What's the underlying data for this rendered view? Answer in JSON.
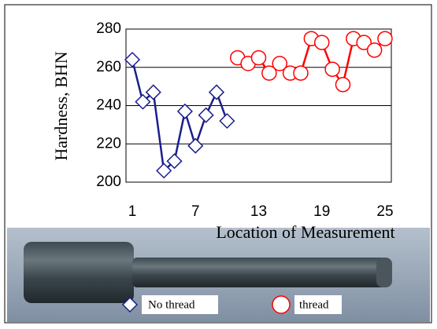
{
  "chart_data": {
    "type": "line",
    "xlabel": "Location of Measurement",
    "ylabel": "Hardness, BHN",
    "xlim": [
      0.4,
      25.6
    ],
    "xticks": [
      1,
      7,
      13,
      19,
      25
    ],
    "ylim": [
      200,
      280
    ],
    "yticks": [
      200,
      220,
      240,
      260,
      280
    ],
    "grid": true,
    "series": [
      {
        "name": "No thread",
        "color": "#1a1f8c",
        "marker": "diamond",
        "x": [
          1,
          2,
          3,
          4,
          5,
          6,
          7,
          8,
          9,
          10
        ],
        "values": [
          264,
          242,
          247,
          206,
          211,
          237,
          219,
          235,
          247,
          232
        ]
      },
      {
        "name": "thread",
        "color": "#ff0000",
        "marker": "circle",
        "x": [
          11,
          12,
          13,
          14,
          15,
          16,
          17,
          18,
          19,
          20,
          21,
          22,
          23,
          24,
          25
        ],
        "values": [
          265,
          262,
          265,
          257,
          262,
          257,
          257,
          275,
          273,
          259,
          251,
          275,
          273,
          269,
          275
        ]
      }
    ]
  }
}
